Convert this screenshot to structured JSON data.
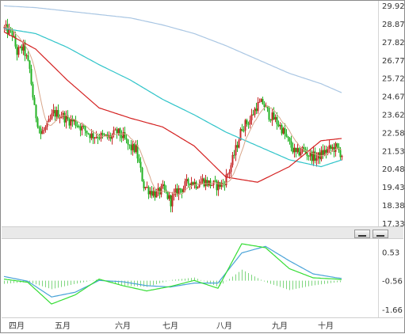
{
  "chart_data": [
    {
      "type": "candlestick",
      "y_ticks": [
        "29.92",
        "28.87",
        "27.82",
        "26.77",
        "25.72",
        "24.67",
        "23.62",
        "22.58",
        "21.53",
        "20.48",
        "19.43",
        "18.38",
        "17.33"
      ],
      "ylim": [
        17.33,
        29.92
      ],
      "x_ticks": [
        "四月",
        "五月",
        "六月",
        "七月",
        "八月",
        "九月",
        "十月"
      ],
      "price_anchors": [
        [
          0,
          28.6
        ],
        [
          5,
          28.3
        ],
        [
          8,
          27.2
        ],
        [
          12,
          27.5
        ],
        [
          16,
          26.2
        ],
        [
          19,
          23.9
        ],
        [
          23,
          22.5
        ],
        [
          27,
          22.9
        ],
        [
          31,
          23.7
        ],
        [
          36,
          23.6
        ],
        [
          40,
          23.3
        ],
        [
          44,
          23.2
        ],
        [
          47,
          23.0
        ],
        [
          51,
          22.7
        ],
        [
          55,
          22.4
        ],
        [
          59,
          22.4
        ],
        [
          63,
          22.3
        ],
        [
          67,
          22.3
        ],
        [
          71,
          22.6
        ],
        [
          75,
          22.3
        ],
        [
          79,
          21.7
        ],
        [
          83,
          21.6
        ],
        [
          88,
          19.5
        ],
        [
          92,
          19.2
        ],
        [
          96,
          19.0
        ],
        [
          100,
          19.3
        ],
        [
          105,
          18.6
        ],
        [
          109,
          19.2
        ],
        [
          113,
          19.4
        ],
        [
          117,
          19.8
        ],
        [
          121,
          19.6
        ],
        [
          125,
          19.8
        ],
        [
          130,
          19.6
        ],
        [
          134,
          19.5
        ],
        [
          138,
          19.6
        ],
        [
          142,
          20.4
        ],
        [
          146,
          21.6
        ],
        [
          150,
          22.9
        ],
        [
          155,
          23.3
        ],
        [
          159,
          24.1
        ],
        [
          163,
          24.3
        ],
        [
          167,
          23.6
        ],
        [
          171,
          23.3
        ],
        [
          175,
          22.8
        ],
        [
          180,
          21.9
        ],
        [
          184,
          21.3
        ],
        [
          188,
          21.6
        ],
        [
          192,
          21.3
        ],
        [
          197,
          21.1
        ],
        [
          201,
          21.4
        ],
        [
          205,
          21.6
        ],
        [
          209,
          21.7
        ],
        [
          213,
          21.3
        ]
      ],
      "ma_short_anchors": [
        [
          0,
          28.4
        ],
        [
          20,
          27.4
        ],
        [
          40,
          25.6
        ],
        [
          60,
          24.0
        ],
        [
          80,
          23.4
        ],
        [
          100,
          22.9
        ],
        [
          120,
          21.8
        ],
        [
          140,
          20.0
        ],
        [
          160,
          19.7
        ],
        [
          180,
          20.6
        ],
        [
          200,
          22.1
        ],
        [
          220,
          22.3
        ]
      ],
      "ma_long_anchors": [
        [
          0,
          29.9
        ],
        [
          20,
          29.8
        ],
        [
          40,
          29.6
        ],
        [
          60,
          29.4
        ],
        [
          80,
          29.2
        ],
        [
          100,
          28.8
        ],
        [
          120,
          28.3
        ],
        [
          140,
          27.6
        ],
        [
          160,
          26.8
        ],
        [
          180,
          26.0
        ],
        [
          200,
          25.4
        ],
        [
          220,
          24.6
        ]
      ],
      "ma_mid_anchors": [
        [
          0,
          28.6
        ],
        [
          20,
          28.3
        ],
        [
          40,
          27.5
        ],
        [
          60,
          26.5
        ],
        [
          80,
          25.6
        ],
        [
          100,
          24.5
        ],
        [
          120,
          23.6
        ],
        [
          140,
          22.6
        ],
        [
          160,
          21.8
        ],
        [
          180,
          21.0
        ],
        [
          200,
          20.6
        ],
        [
          220,
          21.2
        ]
      ]
    },
    {
      "type": "macd",
      "y_ticks": [
        "0.53",
        "-0.56",
        "-1.66"
      ],
      "ylim": [
        -1.9,
        1.0
      ],
      "dif_anchors": [
        [
          0,
          -0.5
        ],
        [
          15,
          -0.62
        ],
        [
          30,
          -1.45
        ],
        [
          45,
          -1.1
        ],
        [
          60,
          -0.5
        ],
        [
          75,
          -0.75
        ],
        [
          90,
          -0.95
        ],
        [
          105,
          -0.78
        ],
        [
          120,
          -0.55
        ],
        [
          135,
          -0.85
        ],
        [
          150,
          0.85
        ],
        [
          165,
          0.7
        ],
        [
          180,
          -0.1
        ],
        [
          195,
          -0.45
        ],
        [
          210,
          -0.5
        ],
        [
          220,
          -0.56
        ]
      ],
      "dea_anchors": [
        [
          0,
          -0.4
        ],
        [
          15,
          -0.58
        ],
        [
          30,
          -1.18
        ],
        [
          45,
          -1.0
        ],
        [
          60,
          -0.55
        ],
        [
          75,
          -0.6
        ],
        [
          90,
          -0.75
        ],
        [
          105,
          -0.8
        ],
        [
          120,
          -0.65
        ],
        [
          135,
          -0.65
        ],
        [
          150,
          0.5
        ],
        [
          165,
          0.75
        ],
        [
          180,
          0.2
        ],
        [
          195,
          -0.3
        ],
        [
          210,
          -0.45
        ],
        [
          220,
          -0.52
        ]
      ]
    }
  ]
}
